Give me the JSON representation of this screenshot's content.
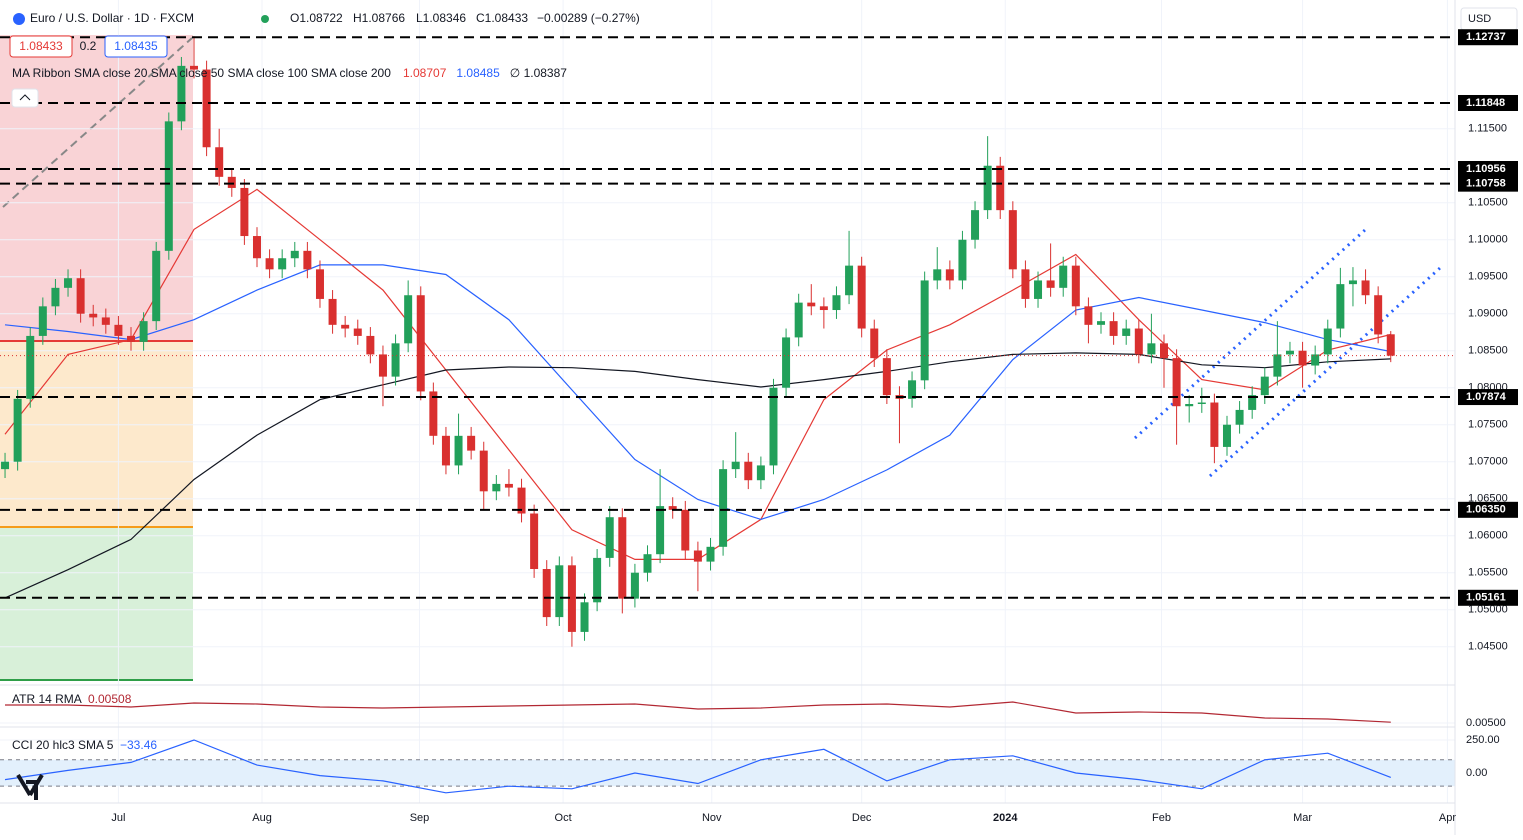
{
  "chart_data": {
    "type": "candlestick",
    "title": "Euro / U.S. Dollar · 1D · FXCM",
    "header_stats": [
      "O1.08722",
      "H1.08766",
      "L1.08346",
      "C1.08433",
      "−0.00289 (−0.27%)"
    ],
    "quote_boxes": [
      "1.08433",
      "0.2",
      "1.08435"
    ],
    "currency": "USD",
    "up_color": "#22a05a",
    "down_color": "#d9302f",
    "xlim": [
      -0.4,
      115.1
    ],
    "ylim": [
      1.0405,
      1.1324
    ],
    "xticks": [
      {
        "value": 9,
        "label": "Jul"
      },
      {
        "value": 20.4,
        "label": "Aug"
      },
      {
        "value": 32.9,
        "label": "Sep"
      },
      {
        "value": 44.3,
        "label": "Oct"
      },
      {
        "value": 56.1,
        "label": "Nov"
      },
      {
        "value": 68,
        "label": "Dec"
      },
      {
        "value": 79.4,
        "label": "2024"
      },
      {
        "value": 91.8,
        "label": "Feb"
      },
      {
        "value": 103,
        "label": "Mar"
      },
      {
        "value": 114.5,
        "label": "Apr"
      }
    ],
    "yticks": [
      {
        "value": 1.115,
        "label": "1.11500"
      },
      {
        "value": 1.105,
        "label": "1.10500"
      },
      {
        "value": 1.1,
        "label": "1.10000"
      },
      {
        "value": 1.095,
        "label": "1.09500"
      },
      {
        "value": 1.09,
        "label": "1.09000"
      },
      {
        "value": 1.085,
        "label": "1.08500"
      },
      {
        "value": 1.08,
        "label": "1.08000"
      },
      {
        "value": 1.075,
        "label": "1.07500"
      },
      {
        "value": 1.07,
        "label": "1.07000"
      },
      {
        "value": 1.065,
        "label": "1.06500"
      },
      {
        "value": 1.06,
        "label": "1.06000"
      },
      {
        "value": 1.055,
        "label": "1.05500"
      },
      {
        "value": 1.05,
        "label": "1.05000"
      },
      {
        "value": 1.045,
        "label": "1.04500"
      }
    ],
    "levels": [
      {
        "value": 1.12737,
        "label": "1.12737"
      },
      {
        "value": 1.11848,
        "label": "1.11848"
      },
      {
        "value": 1.10956,
        "label": "1.10956"
      },
      {
        "value": 1.10758,
        "label": "1.10758"
      },
      {
        "value": 1.07874,
        "label": "1.07874"
      },
      {
        "value": 1.0635,
        "label": "1.06350"
      },
      {
        "value": 1.05161,
        "label": "1.05161"
      }
    ],
    "candles": [
      [
        1.069,
        1.0712,
        1.0678,
        1.07
      ],
      [
        1.07,
        1.0797,
        1.0688,
        1.0785
      ],
      [
        1.0785,
        1.0882,
        1.0773,
        1.087
      ],
      [
        1.087,
        1.0922,
        1.0858,
        1.091
      ],
      [
        1.091,
        1.0947,
        1.0898,
        1.0935
      ],
      [
        1.0935,
        1.096,
        1.0923,
        1.0948
      ],
      [
        1.0948,
        1.096,
        1.0888,
        1.09
      ],
      [
        1.09,
        1.0912,
        1.0883,
        1.0895
      ],
      [
        1.0895,
        1.0907,
        1.0873,
        1.0885
      ],
      [
        1.0885,
        1.0897,
        1.0858,
        1.087
      ],
      [
        1.087,
        1.0882,
        1.085,
        1.0862
      ],
      [
        1.0862,
        1.0902,
        1.085,
        1.089
      ],
      [
        1.089,
        1.0997,
        1.0878,
        1.0985
      ],
      [
        1.0985,
        1.1172,
        1.0973,
        1.116
      ],
      [
        1.116,
        1.1247,
        1.1148,
        1.1235
      ],
      [
        1.1235,
        1.1275,
        1.1218,
        1.123
      ],
      [
        1.123,
        1.1242,
        1.1113,
        1.1125
      ],
      [
        1.1125,
        1.115,
        1.1073,
        1.1085
      ],
      [
        1.1085,
        1.1097,
        1.1058,
        1.107
      ],
      [
        1.107,
        1.1082,
        1.0993,
        1.1005
      ],
      [
        1.1005,
        1.1017,
        1.0963,
        1.0975
      ],
      [
        1.0975,
        1.0987,
        1.0948,
        1.096
      ],
      [
        1.096,
        1.0987,
        1.0948,
        1.0975
      ],
      [
        1.0975,
        1.0997,
        1.0963,
        1.0985
      ],
      [
        1.0985,
        1.0997,
        1.0948,
        1.096
      ],
      [
        1.096,
        1.0972,
        1.0908,
        1.092
      ],
      [
        1.092,
        1.0932,
        1.0873,
        1.0885
      ],
      [
        1.0885,
        1.0897,
        1.0868,
        1.088
      ],
      [
        1.088,
        1.0892,
        1.0858,
        1.087
      ],
      [
        1.087,
        1.0882,
        1.0833,
        1.0845
      ],
      [
        1.0845,
        1.0857,
        1.0775,
        1.0815
      ],
      [
        1.0815,
        1.0872,
        1.0803,
        1.086
      ],
      [
        1.086,
        1.0945,
        1.0848,
        1.0925
      ],
      [
        1.0925,
        1.0937,
        1.0783,
        1.0795
      ],
      [
        1.0795,
        1.0807,
        1.0723,
        1.0735
      ],
      [
        1.0735,
        1.0747,
        1.0683,
        1.0695
      ],
      [
        1.0695,
        1.0765,
        1.0683,
        1.0735
      ],
      [
        1.0735,
        1.0747,
        1.0703,
        1.0715
      ],
      [
        1.0715,
        1.0727,
        1.0635,
        1.066
      ],
      [
        1.066,
        1.0682,
        1.0648,
        1.067
      ],
      [
        1.067,
        1.069,
        1.0653,
        1.0665
      ],
      [
        1.0665,
        1.0677,
        1.0618,
        1.063
      ],
      [
        1.063,
        1.0642,
        1.0543,
        1.0555
      ],
      [
        1.0555,
        1.0567,
        1.0478,
        1.049
      ],
      [
        1.049,
        1.0572,
        1.0478,
        1.056
      ],
      [
        1.056,
        1.0572,
        1.045,
        1.047
      ],
      [
        1.047,
        1.0522,
        1.0458,
        1.051
      ],
      [
        1.051,
        1.0582,
        1.0498,
        1.057
      ],
      [
        1.057,
        1.064,
        1.0558,
        1.0625
      ],
      [
        1.0625,
        1.0637,
        1.0495,
        1.0515
      ],
      [
        1.0515,
        1.0562,
        1.0503,
        1.055
      ],
      [
        1.055,
        1.0587,
        1.0538,
        1.0575
      ],
      [
        1.0575,
        1.069,
        1.0563,
        1.064
      ],
      [
        1.064,
        1.0652,
        1.0623,
        1.0635
      ],
      [
        1.0635,
        1.0647,
        1.0568,
        1.058
      ],
      [
        1.058,
        1.0592,
        1.0525,
        1.0565
      ],
      [
        1.0565,
        1.0597,
        1.0553,
        1.0585
      ],
      [
        1.0585,
        1.0702,
        1.0573,
        1.069
      ],
      [
        1.069,
        1.074,
        1.0678,
        1.07
      ],
      [
        1.07,
        1.0712,
        1.0663,
        1.0675
      ],
      [
        1.0675,
        1.0707,
        1.0663,
        1.0695
      ],
      [
        1.0695,
        1.0812,
        1.0683,
        1.08
      ],
      [
        1.08,
        1.088,
        1.0788,
        1.0868
      ],
      [
        1.0868,
        1.0927,
        1.0856,
        1.0915
      ],
      [
        1.0915,
        1.094,
        1.0898,
        1.091
      ],
      [
        1.091,
        1.0922,
        1.088,
        1.0905
      ],
      [
        1.0905,
        1.0937,
        1.0893,
        1.0925
      ],
      [
        1.0925,
        1.1012,
        1.0913,
        1.0965
      ],
      [
        1.0965,
        1.0977,
        1.0868,
        1.088
      ],
      [
        1.088,
        1.0892,
        1.0828,
        1.084
      ],
      [
        1.084,
        1.0852,
        1.0778,
        1.079
      ],
      [
        1.079,
        1.0802,
        1.0725,
        1.0785
      ],
      [
        1.0785,
        1.0822,
        1.0773,
        1.081
      ],
      [
        1.081,
        1.0957,
        1.0798,
        1.0945
      ],
      [
        1.0945,
        1.099,
        1.0933,
        1.096
      ],
      [
        1.096,
        1.0972,
        1.0933,
        1.0945
      ],
      [
        1.0945,
        1.1012,
        1.0933,
        1.1
      ],
      [
        1.1,
        1.1052,
        1.0988,
        1.104
      ],
      [
        1.104,
        1.114,
        1.1028,
        1.11
      ],
      [
        1.11,
        1.1112,
        1.1028,
        1.104
      ],
      [
        1.104,
        1.1052,
        1.0948,
        1.096
      ],
      [
        1.096,
        1.0972,
        1.0908,
        1.092
      ],
      [
        1.092,
        1.0957,
        1.0908,
        1.0945
      ],
      [
        1.0945,
        1.0995,
        1.0923,
        1.0935
      ],
      [
        1.0935,
        1.0977,
        1.0923,
        1.0965
      ],
      [
        1.0965,
        1.0977,
        1.0898,
        1.091
      ],
      [
        1.091,
        1.0922,
        1.086,
        1.0885
      ],
      [
        1.0885,
        1.0902,
        1.0873,
        1.089
      ],
      [
        1.089,
        1.0902,
        1.0858,
        1.087
      ],
      [
        1.087,
        1.0892,
        1.0858,
        1.088
      ],
      [
        1.088,
        1.0892,
        1.0833,
        1.0845
      ],
      [
        1.0845,
        1.09,
        1.0833,
        1.086
      ],
      [
        1.086,
        1.0872,
        1.08,
        1.084
      ],
      [
        1.084,
        1.0852,
        1.0723,
        1.0775
      ],
      [
        1.0775,
        1.079,
        1.0753,
        1.0778
      ],
      [
        1.0778,
        1.08,
        1.0766,
        1.078
      ],
      [
        1.078,
        1.0792,
        1.0698,
        1.072
      ],
      [
        1.072,
        1.0762,
        1.0708,
        1.075
      ],
      [
        1.075,
        1.0782,
        1.0738,
        1.077
      ],
      [
        1.077,
        1.0802,
        1.0758,
        1.079
      ],
      [
        1.079,
        1.0827,
        1.0778,
        1.0815
      ],
      [
        1.0815,
        1.089,
        1.0803,
        1.0845
      ],
      [
        1.0845,
        1.0862,
        1.0833,
        1.085
      ],
      [
        1.085,
        1.0862,
        1.08,
        1.083
      ],
      [
        1.083,
        1.0857,
        1.0818,
        1.0845
      ],
      [
        1.0845,
        1.0892,
        1.0833,
        1.088
      ],
      [
        1.088,
        1.0962,
        1.0868,
        1.094
      ],
      [
        1.094,
        1.0963,
        1.091,
        1.0945
      ],
      [
        1.0945,
        1.096,
        1.0913,
        1.0925
      ],
      [
        1.0925,
        1.0937,
        1.086,
        1.0872
      ],
      [
        1.08722,
        1.08766,
        1.08346,
        1.08433
      ]
    ],
    "ma_label": "MA Ribbon SMA close 20 SMA close 50 SMA close 100 SMA close 200",
    "ma_x": [
      0,
      5,
      10,
      15,
      20,
      25,
      30,
      35,
      40,
      45,
      50,
      55,
      60,
      65,
      70,
      75,
      80,
      85,
      90,
      95,
      100,
      105,
      110
    ],
    "ma_series": [
      {
        "color": "#e53935",
        "last_label": "1.08707",
        "values": [
          1.0737,
          1.0845,
          1.0865,
          1.1014,
          1.1068,
          1.1,
          1.0932,
          1.0824,
          1.0716,
          1.0608,
          1.0568,
          1.0568,
          1.0622,
          1.0784,
          1.0851,
          1.0885,
          1.0932,
          1.098,
          1.0892,
          1.0811,
          1.0797,
          1.0851,
          1.0872
        ]
      },
      {
        "color": "#2962ff",
        "last_label": "1.08485",
        "values": [
          1.0885,
          1.0876,
          1.0865,
          1.0892,
          1.0932,
          1.0966,
          1.0966,
          1.0953,
          1.0892,
          1.0797,
          1.0703,
          1.0649,
          1.0622,
          1.0649,
          1.0689,
          1.0736,
          1.0838,
          1.0905,
          1.0922,
          1.0905,
          1.0888,
          1.0865,
          1.0849
        ]
      },
      {
        "color": "#131722",
        "last_label": "∅ 1.08387",
        "values": [
          1.0516,
          1.0554,
          1.0595,
          1.0676,
          1.0736,
          1.0784,
          1.0804,
          1.0824,
          1.0828,
          1.0827,
          1.0822,
          1.0811,
          1.0801,
          1.0811,
          1.0822,
          1.0835,
          1.0845,
          1.0847,
          1.0845,
          1.0831,
          1.0827,
          1.0835,
          1.0839
        ]
      }
    ],
    "atr": {
      "label": "ATR 14 RMA",
      "last_label": "0.00508",
      "color": "#b22833",
      "ylim": [
        0.0045,
        0.0085
      ],
      "yticks": [
        {
          "value": 0.005,
          "label": "0.00500"
        }
      ],
      "values": [
        0.0068,
        0.0068,
        0.0066,
        0.007,
        0.0069,
        0.0066,
        0.0065,
        0.0066,
        0.0067,
        0.0068,
        0.0069,
        0.0064,
        0.0065,
        0.0068,
        0.0069,
        0.0066,
        0.0071,
        0.006,
        0.0061,
        0.006,
        0.0055,
        0.0054,
        0.00508
      ]
    },
    "cci": {
      "label": "CCI 20 hlc3 SMA 5",
      "last_label": "−33.46",
      "color": "#2962ff",
      "ylim": [
        -220,
        326
      ],
      "band": [
        -100,
        100
      ],
      "yticks": [
        {
          "value": 250,
          "label": "250.00"
        },
        {
          "value": 0,
          "label": "0.00"
        }
      ],
      "values": [
        -50,
        20,
        80,
        250,
        60,
        -20,
        -60,
        -150,
        -100,
        -120,
        0,
        -80,
        100,
        180,
        -60,
        100,
        130,
        0,
        -50,
        -120,
        100,
        150,
        -33.46
      ]
    }
  }
}
